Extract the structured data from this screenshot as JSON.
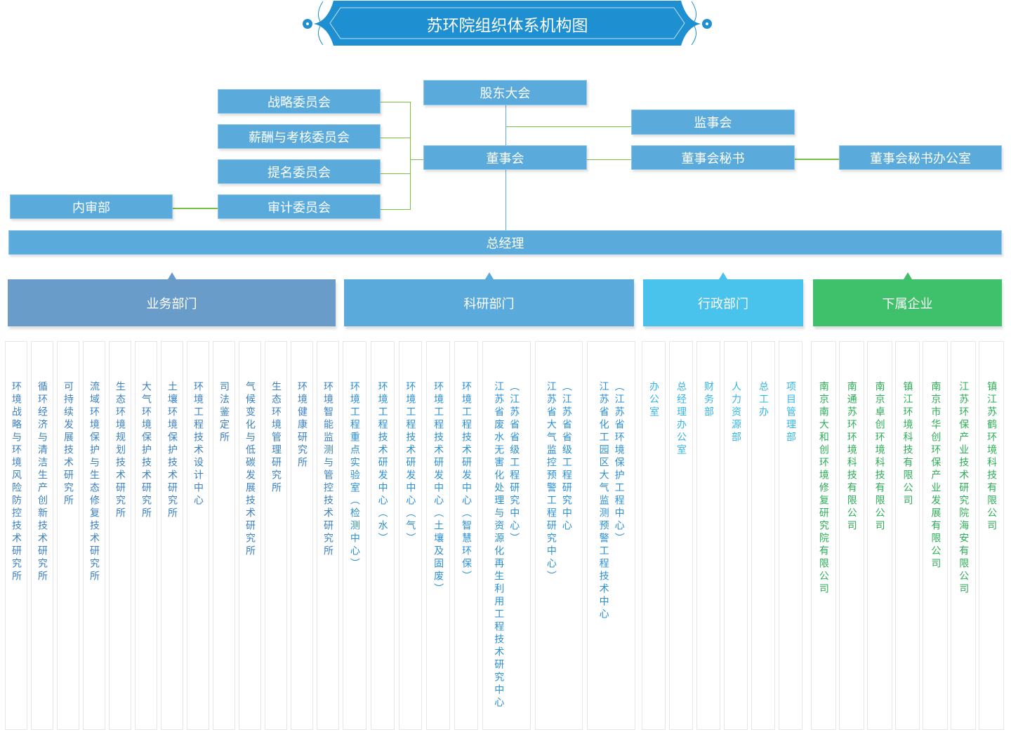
{
  "title": "苏环院组织体系机构图",
  "colors": {
    "box": "#5aabdc",
    "line": "#77c043",
    "business": "#6a9cc9",
    "research": "#5aabdc",
    "admin": "#4ac3ec",
    "subsidiary": "#3fc06a"
  },
  "governance": {
    "shareholders": "股东大会",
    "board": "董事会",
    "supervisors": "监事会",
    "board_secretary": "董事会秘书",
    "board_secretary_office": "董事会秘书办公室",
    "committees": [
      "战略委员会",
      "薪酬与考核委员会",
      "提名委员会",
      "审计委员会"
    ],
    "internal_audit": "内审部",
    "general_manager": "总经理"
  },
  "departments": [
    {
      "label": "业务部门",
      "text_color": "#3b7fc2",
      "units": [
        {
          "main": "环境战略与环境风险防控技术研究所"
        },
        {
          "main": "循环经济与清洁生产创新技术研究所"
        },
        {
          "main": "可持续发展技术研究所"
        },
        {
          "main": "流域环境保护与生态修复技术研究所"
        },
        {
          "main": "生态环境规划技术研究所"
        },
        {
          "main": "大气环境保护技术研究所"
        },
        {
          "main": "土壤环境保护技术研究所"
        },
        {
          "main": "环境工程技术设计中心"
        },
        {
          "main": "司法鉴定所"
        },
        {
          "main": "气候变化与低碳发展技术研究所"
        },
        {
          "main": "生态环境管理研究所"
        },
        {
          "main": "环境健康研究所"
        },
        {
          "main": "环境智能监测与管控技术研究所"
        }
      ]
    },
    {
      "label": "科研部门",
      "text_color": "#2b8fd5",
      "units": [
        {
          "main": "环境工程重点实验室（检测中心）"
        },
        {
          "main": "环境工程技术研发中心（水）"
        },
        {
          "main": "环境工程技术研发中心（气）"
        },
        {
          "main": "环境工程技术研发中心（土壤及固废）"
        },
        {
          "main": "环境工程技术研发中心（智慧环保）"
        },
        {
          "main": "江苏省废水无害化处理与资源化再生利用工程技术研究中心",
          "sub": "（江苏省省级工程研究中心）"
        },
        {
          "main": "江苏省大气监控预警工程研究中心）",
          "sub": "（江苏省省级工程研究中心"
        },
        {
          "main": "江苏省化工园区大气监测预警工程技术中心",
          "sub": "（江苏省环境保护工程中心）"
        }
      ]
    },
    {
      "label": "行政部门",
      "text_color": "#33b5e8",
      "units": [
        {
          "main": "办公室"
        },
        {
          "main": "总经理办公室"
        },
        {
          "main": "财务部"
        },
        {
          "main": "人力资源部"
        },
        {
          "main": "总工办"
        },
        {
          "main": "项目管理部"
        }
      ]
    },
    {
      "label": "下属企业",
      "text_color": "#2aae55",
      "units": [
        {
          "main": "南京南大和创环境修复研究院有限公司"
        },
        {
          "main": "南通苏环环境科技有限公司"
        },
        {
          "main": "南京卓创环境科技有限公司"
        },
        {
          "main": "镇江环境科技有限公司"
        },
        {
          "main": "南京市华创环保产业发展有限公司"
        },
        {
          "main": "江苏环保产业技术研究院海安有限公司"
        },
        {
          "main": "镇江苏鹤环境科技有限公司"
        }
      ]
    }
  ]
}
